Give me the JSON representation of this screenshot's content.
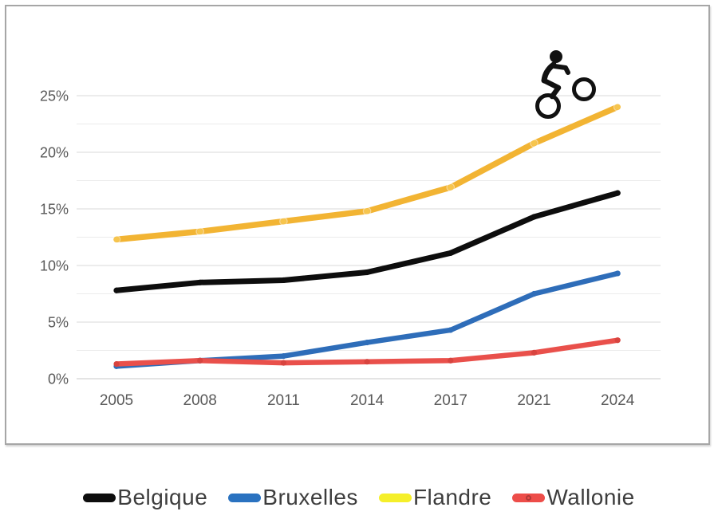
{
  "figure": {
    "background": "#ffffff",
    "frame_border_color": "#a6a6a6"
  },
  "axis": {
    "label_color": "#595959",
    "major_grid_color": "#d9d9d9",
    "minor_grid_color": "#ececec",
    "zero_line_color": "#c9c9c9"
  },
  "legend_text_color": "#3d3d3d",
  "chart_data": {
    "type": "line",
    "title": "",
    "xlabel": "",
    "ylabel": "",
    "categories": [
      "2005",
      "2008",
      "2011",
      "2014",
      "2017",
      "2021",
      "2024"
    ],
    "series": [
      {
        "name": "Belgique",
        "color": "#0d0d0d",
        "weight": 7,
        "marker": "dot",
        "marker_color": "#0d0d0d",
        "values": [
          7.8,
          8.5,
          8.7,
          9.4,
          11.1,
          14.3,
          16.4
        ]
      },
      {
        "name": "Bruxelles",
        "color": "#2e6db9",
        "weight": 6.5,
        "marker": "dot",
        "marker_color": "#2e6db9",
        "values": [
          1.1,
          1.6,
          2.0,
          3.2,
          4.3,
          7.5,
          9.3
        ]
      },
      {
        "name": "Flandre",
        "color": "#f2b433",
        "weight": 7.5,
        "marker": "ring",
        "marker_color": "#f6c54e",
        "values": [
          12.3,
          13.0,
          13.9,
          14.8,
          16.9,
          20.8,
          24.0
        ]
      },
      {
        "name": "Wallonie",
        "color": "#e9504b",
        "weight": 6.5,
        "marker": "dot",
        "marker_color": "#d8443f",
        "values": [
          1.3,
          1.6,
          1.4,
          1.5,
          1.6,
          2.3,
          3.4
        ]
      }
    ],
    "ylim": [
      0,
      25
    ],
    "yticks": [
      0,
      5,
      10,
      15,
      20,
      25
    ],
    "ytick_suffix": "%",
    "grid": "horizontal major every 5, minor every 2.5",
    "legend_position": "bottom",
    "legend": [
      {
        "label": "Belgique",
        "swatch": "#0d0d0d",
        "ring": false
      },
      {
        "label": "Bruxelles",
        "swatch": "#2a72c0",
        "ring": false
      },
      {
        "label": "Flandre",
        "swatch": "#f5ef2a",
        "ring": false
      },
      {
        "label": "Wallonie",
        "swatch": "#ed4d49",
        "ring": true
      }
    ],
    "annotation_icon": "cyclist-icon"
  }
}
